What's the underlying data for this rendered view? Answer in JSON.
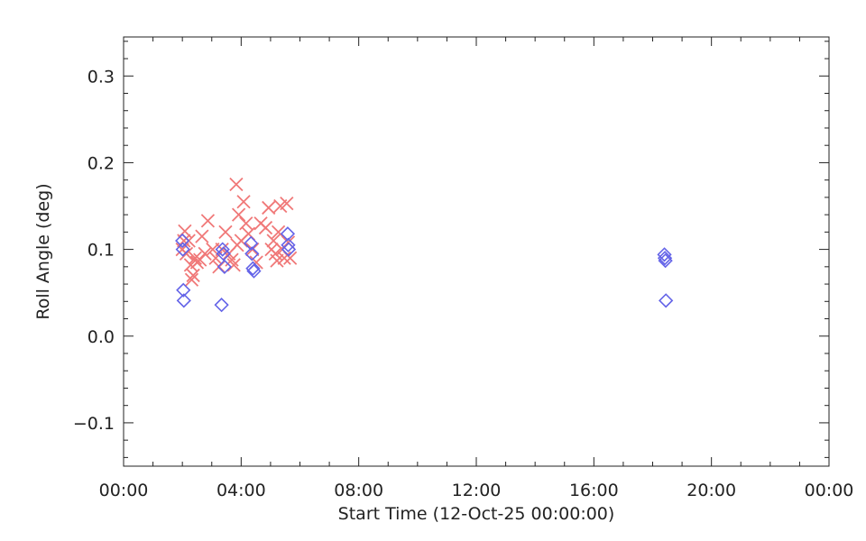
{
  "chart_data": {
    "type": "scatter",
    "title": "",
    "xlabel": "Start Time (12-Oct-25 00:00:00)",
    "ylabel": "Roll Angle (deg)",
    "xlim": [
      "00:00",
      "24:00"
    ],
    "ylim": [
      -0.15,
      0.345
    ],
    "x_tick_labels": [
      "00:00",
      "04:00",
      "08:00",
      "12:00",
      "16:00",
      "20:00",
      "00:00"
    ],
    "y_tick_labels": [
      "−0.1",
      "0.0",
      "0.1",
      "0.2",
      "0.3"
    ],
    "grid": false,
    "series": [
      {
        "marker": "x",
        "color": "#f07878",
        "points": [
          [
            "02:00",
            0.1
          ],
          [
            "02:03",
            0.11
          ],
          [
            "02:05",
            0.121
          ],
          [
            "02:08",
            0.095
          ],
          [
            "02:13",
            0.11
          ],
          [
            "02:17",
            0.082
          ],
          [
            "02:19",
            0.065
          ],
          [
            "02:22",
            0.07
          ],
          [
            "02:26",
            0.09
          ],
          [
            "02:30",
            0.085
          ],
          [
            "02:36",
            0.088
          ],
          [
            "02:40",
            0.115
          ],
          [
            "02:46",
            0.095
          ],
          [
            "02:52",
            0.133
          ],
          [
            "03:02",
            0.1
          ],
          [
            "03:08",
            0.09
          ],
          [
            "03:15",
            0.08
          ],
          [
            "03:21",
            0.1
          ],
          [
            "03:28",
            0.12
          ],
          [
            "03:35",
            0.095
          ],
          [
            "03:41",
            0.088
          ],
          [
            "03:45",
            0.082
          ],
          [
            "03:50",
            0.175
          ],
          [
            "03:52",
            0.105
          ],
          [
            "03:55",
            0.14
          ],
          [
            "04:00",
            0.11
          ],
          [
            "04:05",
            0.155
          ],
          [
            "04:10",
            0.13
          ],
          [
            "04:15",
            0.118
          ],
          [
            "04:23",
            0.1
          ],
          [
            "04:31",
            0.085
          ],
          [
            "04:40",
            0.13
          ],
          [
            "04:50",
            0.125
          ],
          [
            "04:56",
            0.148
          ],
          [
            "05:02",
            0.1
          ],
          [
            "05:06",
            0.11
          ],
          [
            "05:10",
            0.095
          ],
          [
            "05:13",
            0.087
          ],
          [
            "05:16",
            0.12
          ],
          [
            "05:20",
            0.15
          ],
          [
            "05:24",
            0.1
          ],
          [
            "05:28",
            0.09
          ],
          [
            "05:33",
            0.153
          ],
          [
            "05:36",
            0.108
          ],
          [
            "05:40",
            0.09
          ]
        ]
      },
      {
        "marker": "diamond",
        "color": "#6464e8",
        "points": [
          [
            "02:00",
            0.11
          ],
          [
            "02:01",
            0.1
          ],
          [
            "02:02",
            0.053
          ],
          [
            "02:03",
            0.041
          ],
          [
            "03:20",
            0.036
          ],
          [
            "03:22",
            0.1
          ],
          [
            "03:24",
            0.095
          ],
          [
            "03:26",
            0.08
          ],
          [
            "04:20",
            0.107
          ],
          [
            "04:22",
            0.095
          ],
          [
            "04:24",
            0.078
          ],
          [
            "04:26",
            0.075
          ],
          [
            "05:35",
            0.118
          ],
          [
            "05:36",
            0.105
          ],
          [
            "05:37",
            0.1
          ],
          [
            "18:24",
            0.094
          ],
          [
            "18:25",
            0.09
          ],
          [
            "18:26",
            0.087
          ],
          [
            "18:27",
            0.041
          ]
        ]
      }
    ]
  }
}
